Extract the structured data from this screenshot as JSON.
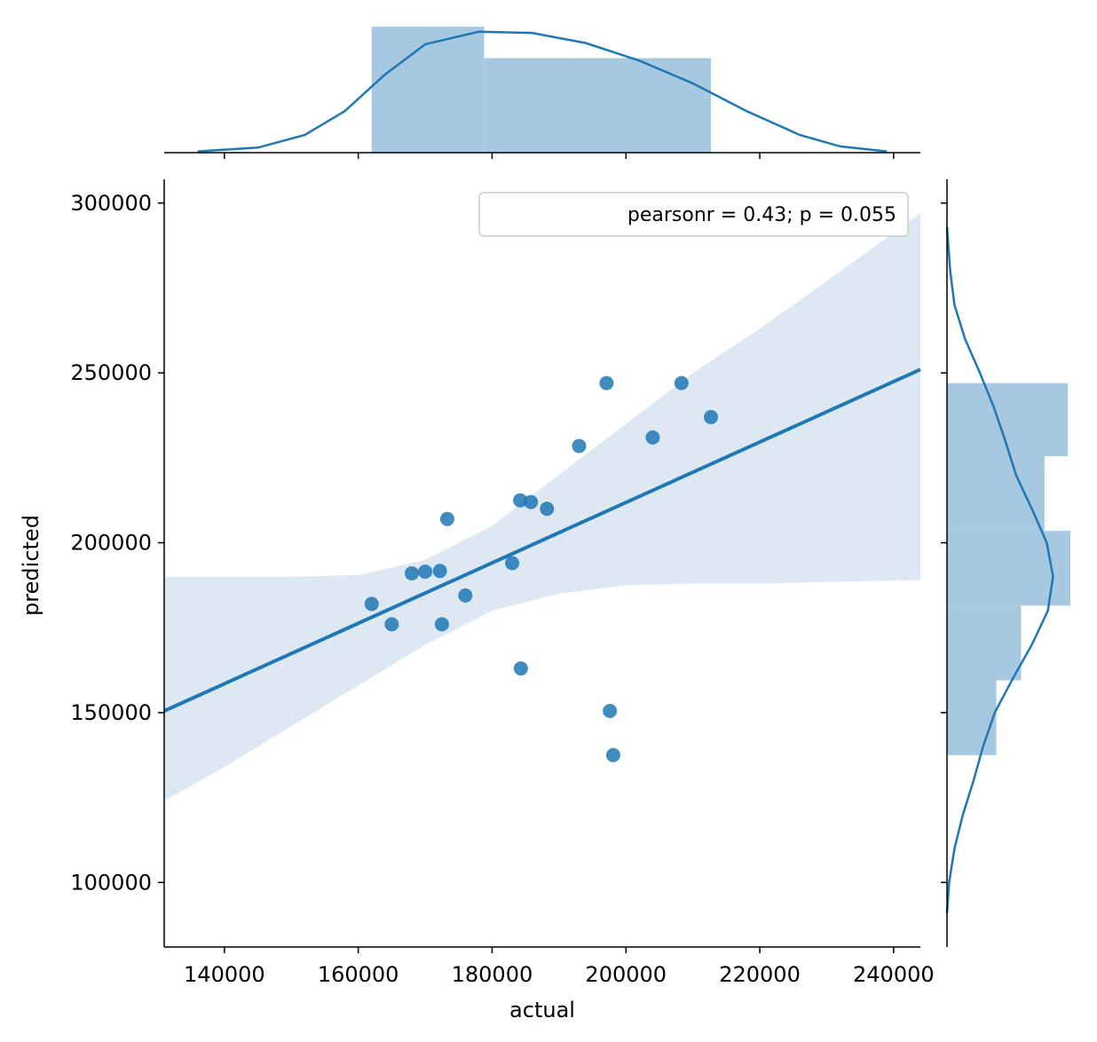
{
  "chart_data": {
    "type": "scatter",
    "subtype": "jointplot",
    "xlabel": "actual",
    "ylabel": "predicted",
    "xlim": [
      131000,
      244000
    ],
    "ylim": [
      81000,
      307000
    ],
    "xticks": [
      140000,
      160000,
      180000,
      200000,
      220000,
      240000
    ],
    "yticks": [
      100000,
      150000,
      200000,
      250000,
      300000
    ],
    "grid": false,
    "legend": {
      "text": "pearsonr = 0.43; p = 0.055",
      "placement": "top-right"
    },
    "colors": {
      "points": "#1f77b4",
      "line": "#1f77b4",
      "band": "#dde8f3",
      "hist": "#a6c8e1"
    },
    "points": [
      [
        162000,
        182000
      ],
      [
        165000,
        176000
      ],
      [
        168000,
        191000
      ],
      [
        170000,
        191500
      ],
      [
        172200,
        191700
      ],
      [
        172500,
        176000
      ],
      [
        173300,
        207000
      ],
      [
        176000,
        184500
      ],
      [
        183000,
        194000
      ],
      [
        184200,
        212500
      ],
      [
        184300,
        163000
      ],
      [
        185800,
        212000
      ],
      [
        188200,
        210000
      ],
      [
        193000,
        228500
      ],
      [
        197100,
        247000
      ],
      [
        197600,
        150500
      ],
      [
        198100,
        137500
      ],
      [
        204000,
        231000
      ],
      [
        208300,
        247000
      ],
      [
        212700,
        237000
      ]
    ],
    "regression": {
      "x": [
        131000,
        244000
      ],
      "y": [
        150500,
        251000
      ]
    },
    "confidence_band": {
      "x": [
        131000,
        140000,
        150000,
        160000,
        170000,
        180000,
        190000,
        200000,
        210000,
        220000,
        230000,
        244000
      ],
      "upper": [
        190000,
        190000,
        190000,
        190500,
        195000,
        205000,
        220000,
        235000,
        250000,
        263000,
        277000,
        297000
      ],
      "lower": [
        124000,
        134000,
        146000,
        158000,
        170000,
        180000,
        185000,
        187500,
        188000,
        188000,
        188500,
        189000
      ]
    },
    "marginal_x": {
      "bins": [
        [
          162000,
          178800,
          1.0
        ],
        [
          178800,
          212700,
          0.75
        ]
      ],
      "kde_x": [
        136000,
        145000,
        152000,
        158000,
        164000,
        170000,
        178000,
        186000,
        194000,
        202000,
        210000,
        218000,
        226000,
        232000,
        239000
      ],
      "kde_y": [
        0.01,
        0.04,
        0.14,
        0.33,
        0.62,
        0.86,
        0.96,
        0.95,
        0.87,
        0.73,
        0.55,
        0.33,
        0.14,
        0.05,
        0.01
      ]
    },
    "marginal_y": {
      "bins": [
        [
          137500,
          159500,
          0.4
        ],
        [
          159500,
          181500,
          0.6
        ],
        [
          181500,
          203500,
          1.0
        ],
        [
          203500,
          225500,
          0.79
        ],
        [
          225500,
          247000,
          0.98
        ]
      ],
      "kde_y": [
        91000,
        100000,
        110000,
        120000,
        130000,
        140000,
        150000,
        160000,
        170000,
        180000,
        190000,
        200000,
        210000,
        220000,
        230000,
        240000,
        250000,
        260000,
        270000,
        280000,
        293000
      ],
      "kde_x": [
        0.0,
        0.02,
        0.07,
        0.15,
        0.25,
        0.34,
        0.45,
        0.62,
        0.8,
        0.95,
        1.0,
        0.94,
        0.8,
        0.65,
        0.55,
        0.44,
        0.31,
        0.17,
        0.07,
        0.03,
        0.0
      ]
    }
  }
}
